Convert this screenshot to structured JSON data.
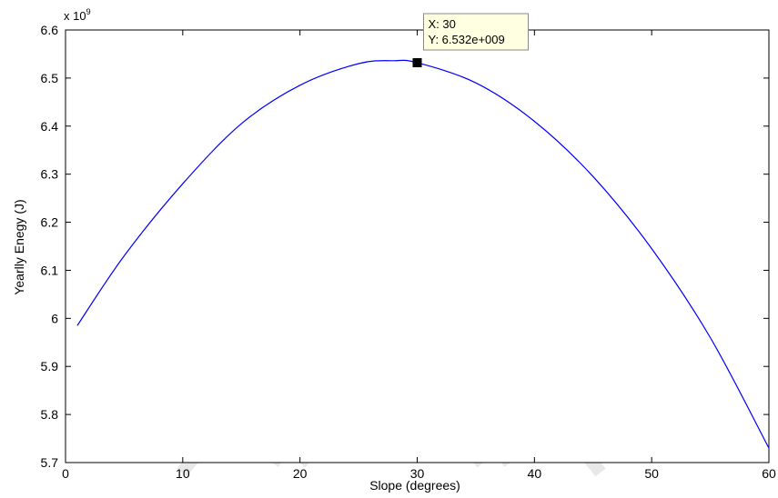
{
  "chart_data": {
    "type": "line",
    "xlabel": "Slope (degrees)",
    "ylabel": "Yearlly Enegy (J)",
    "exponent_label": "x 10",
    "exponent_power": "9",
    "xlim": [
      0,
      60
    ],
    "ylim": [
      5.7,
      6.6
    ],
    "y_scale_factor": 1000000000,
    "xticks": [
      0,
      10,
      20,
      30,
      40,
      50,
      60
    ],
    "yticks": [
      5.7,
      5.8,
      5.9,
      6.0,
      6.1,
      6.2,
      6.3,
      6.4,
      6.5,
      6.6
    ],
    "xtick_labels": [
      "0",
      "10",
      "20",
      "30",
      "40",
      "50",
      "60"
    ],
    "ytick_labels": [
      "5.7",
      "5.8",
      "5.9",
      "6",
      "6.1",
      "6.2",
      "6.3",
      "6.4",
      "6.5",
      "6.6"
    ],
    "grid": false,
    "series": [
      {
        "color": "#0000ff",
        "x": [
          1,
          5,
          10,
          15,
          20,
          25,
          28,
          30,
          35,
          40,
          45,
          50,
          55,
          60
        ],
        "y": [
          5.985,
          6.13,
          6.28,
          6.405,
          6.485,
          6.53,
          6.536,
          6.532,
          6.49,
          6.41,
          6.295,
          6.145,
          5.96,
          5.73
        ]
      }
    ],
    "datatip": {
      "x": 30,
      "y": 6.532,
      "x_text": "X: 30",
      "y_text": "Y: 6.532e+009"
    }
  }
}
